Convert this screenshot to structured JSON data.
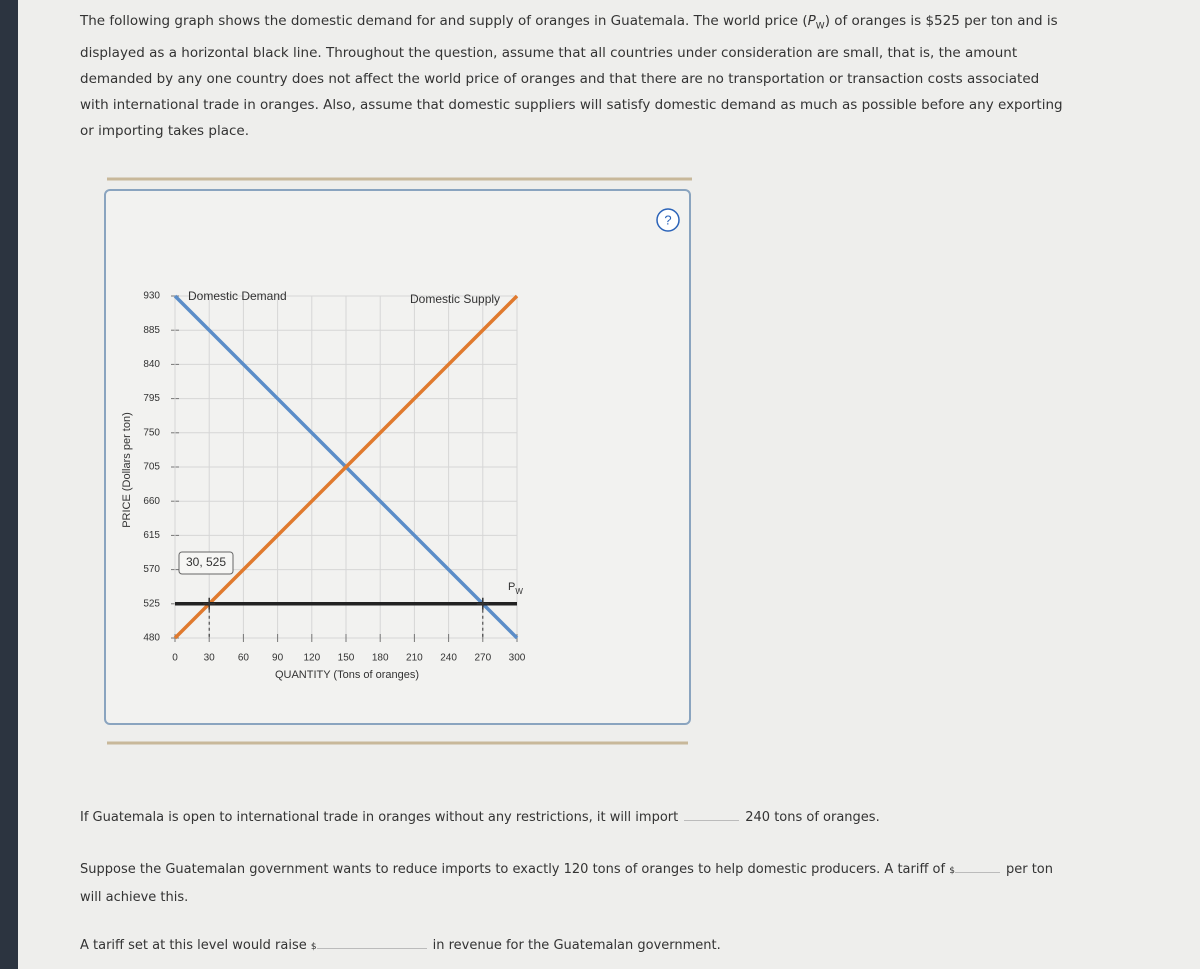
{
  "intro": [
    "The following graph shows the domestic demand for and supply of oranges in Guatemala. The world price (",
    "P",
    "W",
    ") of oranges is $525 per ton and is displayed as a horizontal black line. Throughout the question, assume that all countries under consideration are small, that is, the amount demanded by any one country does not affect the world price of oranges and that there are no transportation or transaction costs associated with international trade in oranges. Also, assume that domestic suppliers will satisfy domestic demand as much as possible before any exporting or importing takes place."
  ],
  "chart_data": {
    "type": "line",
    "x_label": "QUANTITY (Tons of oranges)",
    "y_label": "PRICE (Dollars per ton)",
    "xlim": [
      0,
      300
    ],
    "xticks": [
      0,
      30,
      60,
      90,
      120,
      150,
      180,
      210,
      240,
      270,
      300
    ],
    "ylim": [
      480,
      930
    ],
    "yticks": [
      480,
      525,
      570,
      615,
      660,
      705,
      750,
      795,
      840,
      885,
      930
    ],
    "grid": true,
    "series": [
      {
        "name": "Domestic Demand",
        "color": "#5b8dc8",
        "x": [
          0,
          300
        ],
        "values": [
          930,
          480
        ]
      },
      {
        "name": "Domestic Supply",
        "color": "#e07a2e",
        "x": [
          0,
          300
        ],
        "values": [
          480,
          930
        ]
      },
      {
        "name": "P",
        "name_subscript": "W",
        "color": "#222222",
        "x": [
          0,
          300
        ],
        "values": [
          525,
          525
        ]
      }
    ],
    "points": {
      "x": [
        30,
        270
      ],
      "values": [
        525,
        525
      ]
    },
    "annotations": [
      "30, 525"
    ]
  },
  "q1": {
    "before": "If Guatemala is open to international trade in oranges without any restrictions, it will import",
    "answer": 240,
    "after": "tons of oranges."
  },
  "q2": {
    "before": "Suppose the Guatemalan government wants to reduce imports to exactly 120 tons of oranges to help domestic producers. A tariff of",
    "currency": "$",
    "after": "per ton",
    "line2": "will achieve this."
  },
  "q3": {
    "before": "A tariff set at this level would raise",
    "currency": "$",
    "after": "in revenue for the Guatemalan government."
  }
}
